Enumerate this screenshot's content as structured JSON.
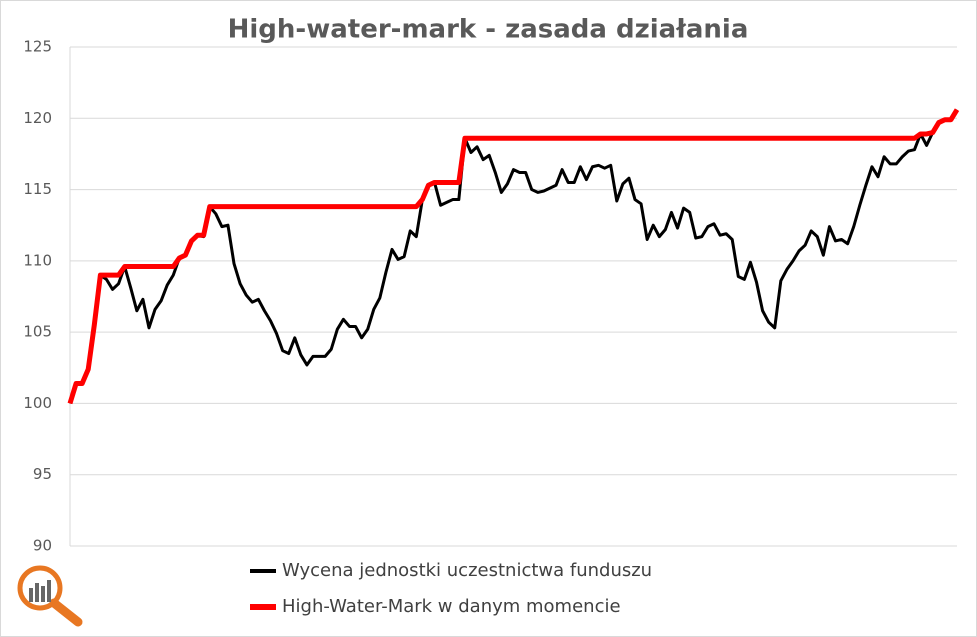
{
  "chart_data": {
    "type": "line",
    "title": "High-water-mark - zasada działania",
    "ylim": [
      90,
      125
    ],
    "yticks": [
      90,
      95,
      100,
      105,
      110,
      115,
      120,
      125
    ],
    "grid": true,
    "legend": "bottom",
    "series": [
      {
        "name": "Wycena jednostki uczestnictwa funduszu",
        "color": "#000000",
        "width": 3,
        "values": [
          100,
          101.4,
          101.4,
          102.4,
          105.5,
          109,
          108.7,
          108,
          108.4,
          109.6,
          108.1,
          106.5,
          107.3,
          105.3,
          106.6,
          107.2,
          108.3,
          109,
          110.2,
          110.4,
          111.4,
          111.8,
          111.7,
          113.8,
          113.3,
          112.4,
          112.5,
          109.8,
          108.4,
          107.6,
          107.1,
          107.3,
          106.5,
          105.8,
          104.9,
          103.7,
          103.5,
          104.6,
          103.4,
          102.7,
          103.3,
          103.3,
          103.3,
          103.8,
          105.2,
          105.9,
          105.4,
          105.4,
          104.6,
          105.2,
          106.6,
          107.4,
          109.2,
          110.8,
          110.1,
          110.3,
          112.1,
          111.7,
          114.3,
          115.3,
          115.5,
          113.9,
          114.1,
          114.3,
          114.3,
          118.6,
          117.6,
          118,
          117.1,
          117.4,
          116.2,
          114.8,
          115.4,
          116.4,
          116.2,
          116.2,
          115,
          114.8,
          114.9,
          115.1,
          115.3,
          116.4,
          115.5,
          115.5,
          116.6,
          115.7,
          116.6,
          116.7,
          116.5,
          116.7,
          114.2,
          115.4,
          115.8,
          114.3,
          114,
          111.5,
          112.5,
          111.7,
          112.2,
          113.4,
          112.3,
          113.7,
          113.4,
          111.6,
          111.7,
          112.4,
          112.6,
          111.8,
          111.9,
          111.5,
          108.9,
          108.7,
          109.9,
          108.5,
          106.5,
          105.7,
          105.3,
          108.6,
          109.4,
          110,
          110.7,
          111.1,
          112.1,
          111.7,
          110.4,
          112.4,
          111.4,
          111.5,
          111.2,
          112.4,
          113.9,
          115.3,
          116.6,
          115.9,
          117.3,
          116.8,
          116.8,
          117.3,
          117.7,
          117.8,
          118.9,
          118.1,
          119,
          119.7,
          119.9,
          119.9,
          120.6
        ]
      },
      {
        "name": "High-Water-Mark w danym momencie",
        "color": "#ff0000",
        "width": 5,
        "values": [
          100,
          101.4,
          101.4,
          102.4,
          105.5,
          109,
          109,
          109,
          109,
          109.6,
          109.6,
          109.6,
          109.6,
          109.6,
          109.6,
          109.6,
          109.6,
          109.6,
          110.2,
          110.4,
          111.4,
          111.8,
          111.8,
          113.8,
          113.8,
          113.8,
          113.8,
          113.8,
          113.8,
          113.8,
          113.8,
          113.8,
          113.8,
          113.8,
          113.8,
          113.8,
          113.8,
          113.8,
          113.8,
          113.8,
          113.8,
          113.8,
          113.8,
          113.8,
          113.8,
          113.8,
          113.8,
          113.8,
          113.8,
          113.8,
          113.8,
          113.8,
          113.8,
          113.8,
          113.8,
          113.8,
          113.8,
          113.8,
          114.3,
          115.3,
          115.5,
          115.5,
          115.5,
          115.5,
          115.5,
          118.6,
          118.6,
          118.6,
          118.6,
          118.6,
          118.6,
          118.6,
          118.6,
          118.6,
          118.6,
          118.6,
          118.6,
          118.6,
          118.6,
          118.6,
          118.6,
          118.6,
          118.6,
          118.6,
          118.6,
          118.6,
          118.6,
          118.6,
          118.6,
          118.6,
          118.6,
          118.6,
          118.6,
          118.6,
          118.6,
          118.6,
          118.6,
          118.6,
          118.6,
          118.6,
          118.6,
          118.6,
          118.6,
          118.6,
          118.6,
          118.6,
          118.6,
          118.6,
          118.6,
          118.6,
          118.6,
          118.6,
          118.6,
          118.6,
          118.6,
          118.6,
          118.6,
          118.6,
          118.6,
          118.6,
          118.6,
          118.6,
          118.6,
          118.6,
          118.6,
          118.6,
          118.6,
          118.6,
          118.6,
          118.6,
          118.6,
          118.6,
          118.6,
          118.6,
          118.6,
          118.6,
          118.6,
          118.6,
          118.6,
          118.6,
          118.9,
          118.9,
          119,
          119.7,
          119.9,
          119.9,
          120.6
        ]
      }
    ]
  }
}
